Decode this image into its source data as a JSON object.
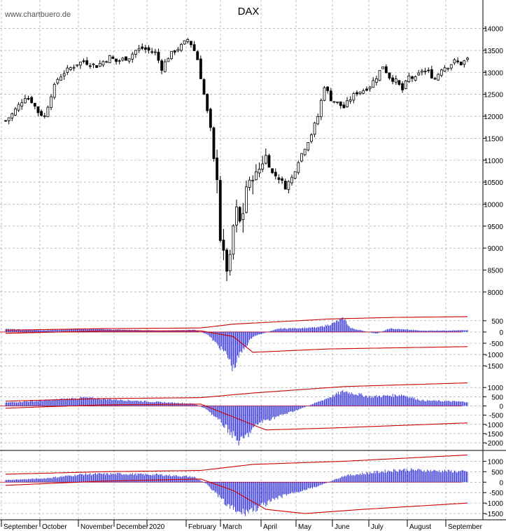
{
  "watermark": "www.chartbuero.de",
  "colors": {
    "candle": "#000000",
    "histogram": "#1f1fd6",
    "band": "#cc0000",
    "grid": "#999999"
  },
  "chart_data": {
    "type": "candlestick",
    "title": "DAX",
    "x_months": [
      "September",
      "October",
      "November",
      "December",
      "2020",
      "February",
      "March",
      "April",
      "May",
      "June",
      "July",
      "August",
      "September"
    ],
    "price": {
      "y_ticks": [
        8000,
        8500,
        9000,
        9500,
        10000,
        10500,
        11000,
        11500,
        12000,
        12500,
        13000,
        13500,
        14000
      ],
      "ylim": [
        7700,
        14350
      ],
      "close_path": [
        [
          0,
          11900
        ],
        [
          2,
          12050
        ],
        [
          4,
          12250
        ],
        [
          6,
          12450
        ],
        [
          8,
          12350
        ],
        [
          10,
          12100
        ],
        [
          12,
          12000
        ],
        [
          14,
          12500
        ],
        [
          16,
          12850
        ],
        [
          18,
          13000
        ],
        [
          20,
          13100
        ],
        [
          22,
          13200
        ],
        [
          24,
          13250
        ],
        [
          26,
          13200
        ],
        [
          28,
          13150
        ],
        [
          30,
          13250
        ],
        [
          32,
          13350
        ],
        [
          34,
          13250
        ],
        [
          36,
          13300
        ],
        [
          38,
          13350
        ],
        [
          40,
          13500
        ],
        [
          42,
          13550
        ],
        [
          44,
          13500
        ],
        [
          46,
          13450
        ],
        [
          48,
          13100
        ],
        [
          50,
          13350
        ],
        [
          52,
          13500
        ],
        [
          54,
          13600
        ],
        [
          56,
          13750
        ],
        [
          57,
          13650
        ],
        [
          58,
          13500
        ],
        [
          59,
          13300
        ],
        [
          60,
          12900
        ],
        [
          61,
          12500
        ],
        [
          62,
          12100
        ],
        [
          63,
          11700
        ],
        [
          64,
          11000
        ],
        [
          65,
          10600
        ],
        [
          66,
          9200
        ],
        [
          67,
          8900
        ],
        [
          68,
          8500
        ],
        [
          69,
          8800
        ],
        [
          70,
          9500
        ],
        [
          71,
          9900
        ],
        [
          72,
          9600
        ],
        [
          73,
          9800
        ],
        [
          74,
          10400
        ],
        [
          75,
          10500
        ],
        [
          76,
          10600
        ],
        [
          78,
          10800
        ],
        [
          80,
          11100
        ],
        [
          82,
          10700
        ],
        [
          84,
          10600
        ],
        [
          86,
          10400
        ],
        [
          88,
          10600
        ],
        [
          90,
          11000
        ],
        [
          92,
          11300
        ],
        [
          94,
          11600
        ],
        [
          96,
          12000
        ],
        [
          98,
          12700
        ],
        [
          100,
          12400
        ],
        [
          102,
          12300
        ],
        [
          104,
          12200
        ],
        [
          106,
          12400
        ],
        [
          108,
          12550
        ],
        [
          110,
          12600
        ],
        [
          112,
          12700
        ],
        [
          114,
          12900
        ],
        [
          116,
          13150
        ],
        [
          118,
          12900
        ],
        [
          120,
          12800
        ],
        [
          122,
          12600
        ],
        [
          124,
          12900
        ],
        [
          126,
          12850
        ],
        [
          128,
          13050
        ],
        [
          130,
          13000
        ],
        [
          132,
          12850
        ],
        [
          134,
          13100
        ],
        [
          136,
          13150
        ],
        [
          138,
          13250
        ],
        [
          140,
          13200
        ],
        [
          142,
          13300
        ]
      ]
    },
    "indicators": [
      {
        "name": "",
        "y_ticks": [
          -1500,
          -1000,
          -500,
          0,
          500
        ],
        "ylim": [
          -1900,
          900
        ],
        "histogram_path": [
          [
            0,
            130
          ],
          [
            12,
            80
          ],
          [
            24,
            150
          ],
          [
            36,
            100
          ],
          [
            48,
            60
          ],
          [
            58,
            100
          ],
          [
            62,
            -100
          ],
          [
            68,
            -1000
          ],
          [
            70,
            -1650
          ],
          [
            72,
            -1000
          ],
          [
            76,
            -200
          ],
          [
            84,
            150
          ],
          [
            96,
            200
          ],
          [
            100,
            350
          ],
          [
            104,
            600
          ],
          [
            106,
            180
          ],
          [
            114,
            -80
          ],
          [
            118,
            150
          ],
          [
            122,
            120
          ],
          [
            128,
            60
          ],
          [
            142,
            80
          ]
        ],
        "upper_band": [
          [
            0,
            80
          ],
          [
            30,
            150
          ],
          [
            60,
            180
          ],
          [
            70,
            350
          ],
          [
            100,
            580
          ],
          [
            120,
            650
          ],
          [
            142,
            680
          ]
        ],
        "lower_band": [
          [
            0,
            -60
          ],
          [
            30,
            50
          ],
          [
            60,
            50
          ],
          [
            70,
            -200
          ],
          [
            76,
            -900
          ],
          [
            100,
            -750
          ],
          [
            142,
            -650
          ]
        ]
      },
      {
        "name": "",
        "y_ticks": [
          -2000,
          -1500,
          -1000,
          -500,
          0,
          500,
          1000
        ],
        "ylim": [
          -2300,
          1500
        ],
        "histogram_path": [
          [
            0,
            180
          ],
          [
            12,
            300
          ],
          [
            24,
            450
          ],
          [
            36,
            320
          ],
          [
            48,
            200
          ],
          [
            58,
            120
          ],
          [
            62,
            -200
          ],
          [
            68,
            -1200
          ],
          [
            72,
            -2000
          ],
          [
            78,
            -900
          ],
          [
            90,
            -200
          ],
          [
            98,
            350
          ],
          [
            104,
            800
          ],
          [
            112,
            500
          ],
          [
            122,
            600
          ],
          [
            128,
            300
          ],
          [
            142,
            220
          ]
        ],
        "upper_band": [
          [
            0,
            260
          ],
          [
            30,
            400
          ],
          [
            60,
            450
          ],
          [
            76,
            700
          ],
          [
            104,
            1050
          ],
          [
            142,
            1250
          ]
        ],
        "lower_band": [
          [
            0,
            -120
          ],
          [
            30,
            60
          ],
          [
            60,
            100
          ],
          [
            70,
            -600
          ],
          [
            80,
            -1300
          ],
          [
            100,
            -1200
          ],
          [
            142,
            -920
          ]
        ]
      },
      {
        "name": "",
        "y_ticks": [
          -1500,
          -1000,
          -500,
          0,
          500,
          1000
        ],
        "ylim": [
          -1800,
          1450
        ],
        "histogram_path": [
          [
            0,
            100
          ],
          [
            12,
            180
          ],
          [
            24,
            380
          ],
          [
            36,
            400
          ],
          [
            48,
            350
          ],
          [
            58,
            250
          ],
          [
            62,
            -100
          ],
          [
            68,
            -1100
          ],
          [
            72,
            -1500
          ],
          [
            78,
            -1200
          ],
          [
            86,
            -600
          ],
          [
            96,
            -200
          ],
          [
            104,
            300
          ],
          [
            114,
            480
          ],
          [
            122,
            600
          ],
          [
            130,
            550
          ],
          [
            142,
            500
          ]
        ],
        "upper_band": [
          [
            0,
            380
          ],
          [
            30,
            500
          ],
          [
            60,
            560
          ],
          [
            76,
            850
          ],
          [
            104,
            1000
          ],
          [
            142,
            1300
          ]
        ],
        "lower_band": [
          [
            0,
            -150
          ],
          [
            30,
            50
          ],
          [
            60,
            150
          ],
          [
            70,
            -400
          ],
          [
            80,
            -1300
          ],
          [
            92,
            -1500
          ],
          [
            110,
            -1300
          ],
          [
            142,
            -1000
          ]
        ]
      }
    ]
  }
}
